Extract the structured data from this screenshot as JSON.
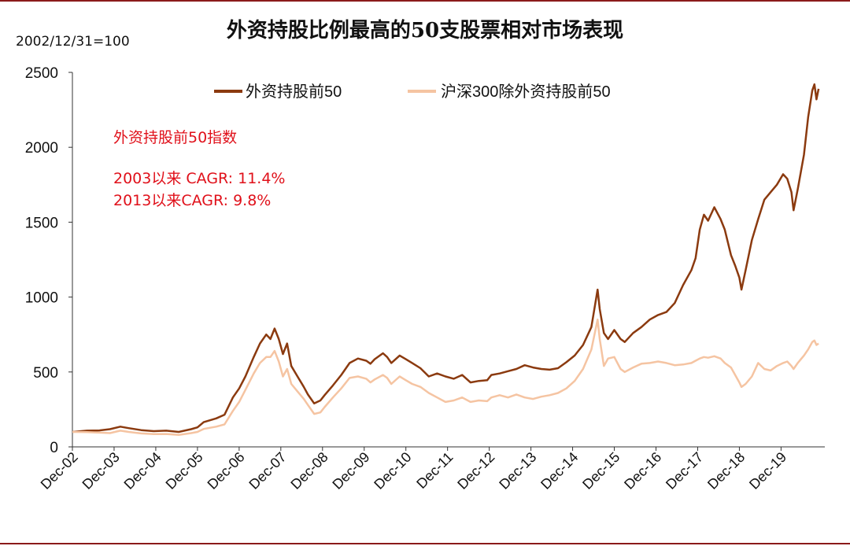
{
  "chart_data": {
    "type": "line",
    "title": "外资持股比例最高的50支股票相对市场表现",
    "base_note": "2002/12/31=100",
    "ylim": [
      0,
      2500
    ],
    "y_ticks": [
      0,
      500,
      1000,
      1500,
      2000,
      2500
    ],
    "categories": [
      "Dec-02",
      "Dec-03",
      "Dec-04",
      "Dec-05",
      "Dec-06",
      "Dec-07",
      "Dec-08",
      "Dec-09",
      "Dec-10",
      "Dec-11",
      "Dec-12",
      "Dec-13",
      "Dec-14",
      "Dec-15",
      "Dec-16",
      "Dec-17",
      "Dec-18",
      "Dec-19"
    ],
    "x_end": 2020.85,
    "legend_position": "top",
    "series": [
      {
        "name": "外资持股前50",
        "color": "#8b3a0f",
        "points": [
          [
            2002.95,
            100
          ],
          [
            2003.3,
            108
          ],
          [
            2003.6,
            110
          ],
          [
            2003.85,
            118
          ],
          [
            2004.1,
            135
          ],
          [
            2004.3,
            125
          ],
          [
            2004.6,
            112
          ],
          [
            2004.9,
            105
          ],
          [
            2005.2,
            108
          ],
          [
            2005.5,
            100
          ],
          [
            2005.8,
            118
          ],
          [
            2005.95,
            130
          ],
          [
            2006.1,
            165
          ],
          [
            2006.4,
            190
          ],
          [
            2006.6,
            215
          ],
          [
            2006.8,
            330
          ],
          [
            2006.95,
            390
          ],
          [
            2007.1,
            470
          ],
          [
            2007.3,
            600
          ],
          [
            2007.45,
            690
          ],
          [
            2007.6,
            750
          ],
          [
            2007.7,
            720
          ],
          [
            2007.8,
            790
          ],
          [
            2007.9,
            720
          ],
          [
            2008.0,
            620
          ],
          [
            2008.1,
            690
          ],
          [
            2008.2,
            540
          ],
          [
            2008.35,
            470
          ],
          [
            2008.5,
            400
          ],
          [
            2008.6,
            350
          ],
          [
            2008.75,
            290
          ],
          [
            2008.9,
            310
          ],
          [
            2009.0,
            345
          ],
          [
            2009.2,
            410
          ],
          [
            2009.4,
            480
          ],
          [
            2009.6,
            560
          ],
          [
            2009.8,
            590
          ],
          [
            2010.0,
            575
          ],
          [
            2010.1,
            555
          ],
          [
            2010.2,
            585
          ],
          [
            2010.4,
            625
          ],
          [
            2010.5,
            600
          ],
          [
            2010.6,
            560
          ],
          [
            2010.8,
            610
          ],
          [
            2010.95,
            585
          ],
          [
            2011.1,
            560
          ],
          [
            2011.3,
            525
          ],
          [
            2011.5,
            470
          ],
          [
            2011.7,
            490
          ],
          [
            2011.9,
            470
          ],
          [
            2012.1,
            455
          ],
          [
            2012.3,
            480
          ],
          [
            2012.5,
            430
          ],
          [
            2012.7,
            440
          ],
          [
            2012.9,
            445
          ],
          [
            2013.0,
            480
          ],
          [
            2013.2,
            490
          ],
          [
            2013.4,
            505
          ],
          [
            2013.6,
            520
          ],
          [
            2013.8,
            545
          ],
          [
            2014.0,
            530
          ],
          [
            2014.2,
            520
          ],
          [
            2014.4,
            515
          ],
          [
            2014.6,
            525
          ],
          [
            2014.8,
            565
          ],
          [
            2015.0,
            610
          ],
          [
            2015.2,
            680
          ],
          [
            2015.4,
            800
          ],
          [
            2015.55,
            1050
          ],
          [
            2015.6,
            920
          ],
          [
            2015.7,
            760
          ],
          [
            2015.8,
            720
          ],
          [
            2015.95,
            780
          ],
          [
            2016.1,
            720
          ],
          [
            2016.2,
            700
          ],
          [
            2016.4,
            760
          ],
          [
            2016.6,
            800
          ],
          [
            2016.8,
            850
          ],
          [
            2017.0,
            880
          ],
          [
            2017.2,
            900
          ],
          [
            2017.4,
            960
          ],
          [
            2017.6,
            1080
          ],
          [
            2017.8,
            1180
          ],
          [
            2017.9,
            1260
          ],
          [
            2018.0,
            1450
          ],
          [
            2018.1,
            1550
          ],
          [
            2018.2,
            1510
          ],
          [
            2018.35,
            1600
          ],
          [
            2018.5,
            1520
          ],
          [
            2018.6,
            1450
          ],
          [
            2018.75,
            1280
          ],
          [
            2018.85,
            1210
          ],
          [
            2018.95,
            1130
          ],
          [
            2019.0,
            1050
          ],
          [
            2019.1,
            1180
          ],
          [
            2019.25,
            1380
          ],
          [
            2019.4,
            1520
          ],
          [
            2019.55,
            1650
          ],
          [
            2019.7,
            1700
          ],
          [
            2019.85,
            1750
          ],
          [
            2020.0,
            1820
          ],
          [
            2020.1,
            1790
          ],
          [
            2020.2,
            1700
          ],
          [
            2020.25,
            1580
          ],
          [
            2020.35,
            1720
          ],
          [
            2020.5,
            1950
          ],
          [
            2020.6,
            2200
          ],
          [
            2020.7,
            2380
          ],
          [
            2020.75,
            2420
          ],
          [
            2020.8,
            2320
          ],
          [
            2020.85,
            2390
          ]
        ]
      },
      {
        "name": "沪深300除外资持股前50",
        "color": "#f5c4a2",
        "points": [
          [
            2002.95,
            100
          ],
          [
            2003.3,
            98
          ],
          [
            2003.6,
            95
          ],
          [
            2003.85,
            92
          ],
          [
            2004.1,
            108
          ],
          [
            2004.3,
            100
          ],
          [
            2004.6,
            90
          ],
          [
            2004.9,
            85
          ],
          [
            2005.2,
            86
          ],
          [
            2005.5,
            80
          ],
          [
            2005.8,
            92
          ],
          [
            2005.95,
            100
          ],
          [
            2006.1,
            120
          ],
          [
            2006.4,
            135
          ],
          [
            2006.6,
            150
          ],
          [
            2006.8,
            240
          ],
          [
            2006.95,
            300
          ],
          [
            2007.1,
            380
          ],
          [
            2007.3,
            490
          ],
          [
            2007.45,
            560
          ],
          [
            2007.6,
            600
          ],
          [
            2007.7,
            600
          ],
          [
            2007.8,
            640
          ],
          [
            2007.9,
            570
          ],
          [
            2008.0,
            470
          ],
          [
            2008.1,
            520
          ],
          [
            2008.2,
            420
          ],
          [
            2008.35,
            370
          ],
          [
            2008.5,
            320
          ],
          [
            2008.6,
            280
          ],
          [
            2008.75,
            220
          ],
          [
            2008.9,
            230
          ],
          [
            2009.0,
            265
          ],
          [
            2009.2,
            330
          ],
          [
            2009.4,
            390
          ],
          [
            2009.6,
            460
          ],
          [
            2009.8,
            470
          ],
          [
            2010.0,
            455
          ],
          [
            2010.1,
            430
          ],
          [
            2010.2,
            450
          ],
          [
            2010.4,
            480
          ],
          [
            2010.5,
            460
          ],
          [
            2010.6,
            420
          ],
          [
            2010.8,
            470
          ],
          [
            2010.95,
            445
          ],
          [
            2011.1,
            420
          ],
          [
            2011.3,
            400
          ],
          [
            2011.5,
            360
          ],
          [
            2011.7,
            330
          ],
          [
            2011.9,
            300
          ],
          [
            2012.1,
            310
          ],
          [
            2012.3,
            330
          ],
          [
            2012.5,
            300
          ],
          [
            2012.7,
            310
          ],
          [
            2012.9,
            305
          ],
          [
            2013.0,
            330
          ],
          [
            2013.2,
            345
          ],
          [
            2013.4,
            330
          ],
          [
            2013.6,
            350
          ],
          [
            2013.8,
            330
          ],
          [
            2014.0,
            320
          ],
          [
            2014.2,
            335
          ],
          [
            2014.4,
            345
          ],
          [
            2014.6,
            360
          ],
          [
            2014.8,
            390
          ],
          [
            2015.0,
            440
          ],
          [
            2015.2,
            520
          ],
          [
            2015.4,
            650
          ],
          [
            2015.55,
            850
          ],
          [
            2015.6,
            720
          ],
          [
            2015.7,
            540
          ],
          [
            2015.8,
            590
          ],
          [
            2015.95,
            600
          ],
          [
            2016.1,
            520
          ],
          [
            2016.2,
            500
          ],
          [
            2016.4,
            530
          ],
          [
            2016.6,
            555
          ],
          [
            2016.8,
            560
          ],
          [
            2017.0,
            570
          ],
          [
            2017.2,
            560
          ],
          [
            2017.4,
            545
          ],
          [
            2017.6,
            550
          ],
          [
            2017.8,
            560
          ],
          [
            2017.9,
            575
          ],
          [
            2018.0,
            590
          ],
          [
            2018.1,
            600
          ],
          [
            2018.2,
            595
          ],
          [
            2018.35,
            605
          ],
          [
            2018.5,
            590
          ],
          [
            2018.6,
            560
          ],
          [
            2018.75,
            530
          ],
          [
            2018.85,
            480
          ],
          [
            2018.95,
            430
          ],
          [
            2019.0,
            400
          ],
          [
            2019.1,
            420
          ],
          [
            2019.25,
            470
          ],
          [
            2019.4,
            560
          ],
          [
            2019.55,
            520
          ],
          [
            2019.7,
            510
          ],
          [
            2019.85,
            540
          ],
          [
            2020.0,
            560
          ],
          [
            2020.1,
            570
          ],
          [
            2020.2,
            540
          ],
          [
            2020.25,
            520
          ],
          [
            2020.35,
            560
          ],
          [
            2020.5,
            610
          ],
          [
            2020.6,
            650
          ],
          [
            2020.7,
            700
          ],
          [
            2020.75,
            710
          ],
          [
            2020.8,
            680
          ],
          [
            2020.85,
            690
          ]
        ]
      }
    ]
  },
  "annotation": {
    "line1": "外资持股前50指数",
    "line2": "2003以来 CAGR: 11.4%",
    "line3": "2013以来CAGR: 9.8%"
  }
}
